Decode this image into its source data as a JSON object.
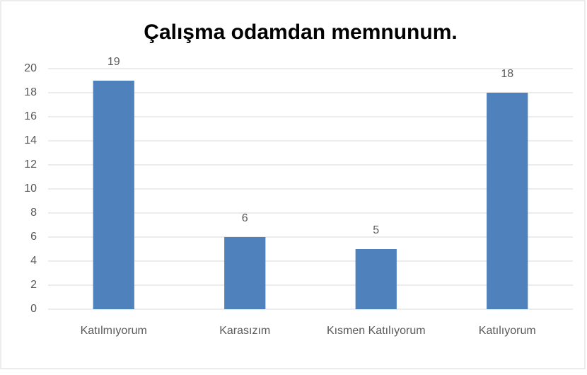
{
  "chart_data": {
    "type": "bar",
    "title": "Çalışma odamdan memnunum.",
    "categories": [
      "Katılmıyorum",
      "Karasızım",
      "Kısmen Katılıyorum",
      "Katılıyorum"
    ],
    "values": [
      19,
      6,
      5,
      18
    ],
    "color": "#4f81bd",
    "ylim": [
      0,
      20
    ],
    "yticks": [
      0,
      2,
      4,
      6,
      8,
      10,
      12,
      14,
      16,
      18,
      20
    ],
    "grid": true,
    "data_labels": true
  }
}
